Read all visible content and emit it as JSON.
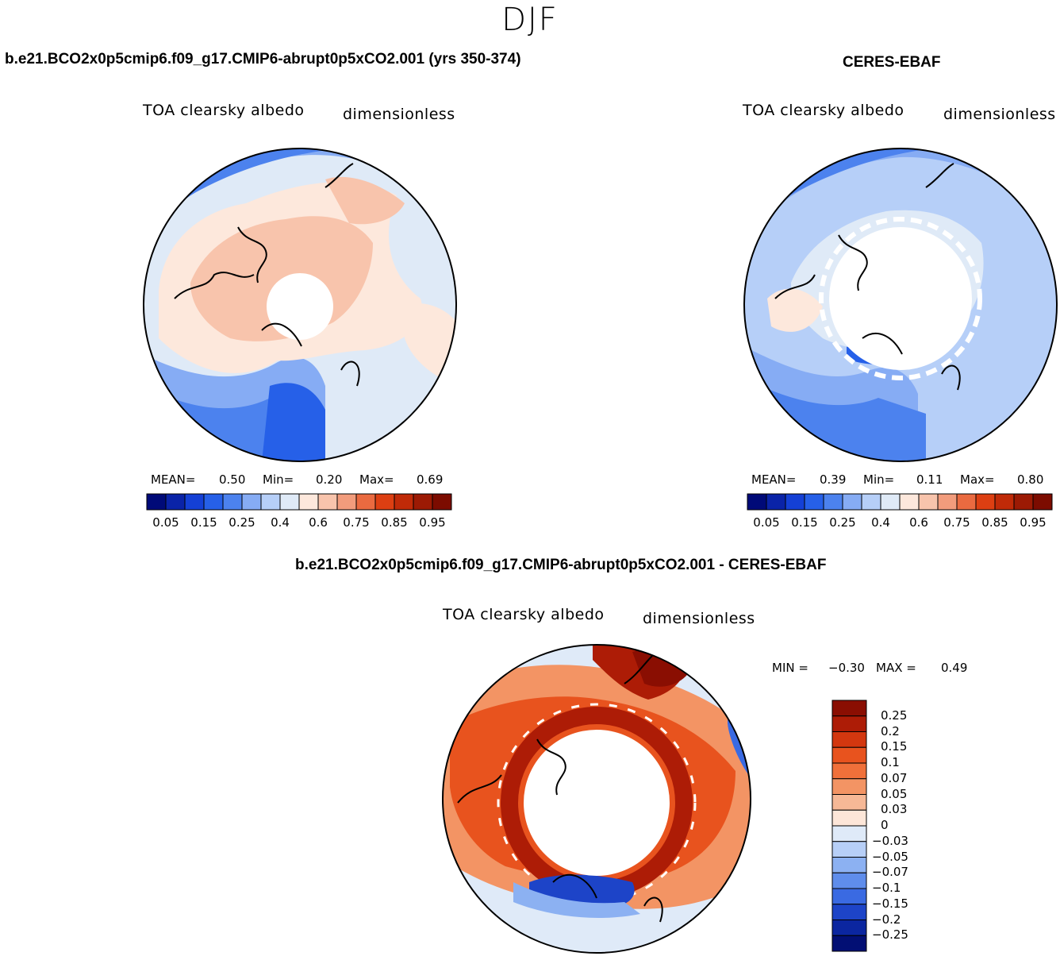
{
  "figure": {
    "season": "DJF",
    "panels": [
      {
        "title": "b.e21.BCO2x0p5cmip6.f09_g17.CMIP6-abrupt0p5xCO2.001 (yrs 350-374)",
        "variable": "TOA clearsky albedo",
        "units": "dimensionless",
        "mean_label": "MEAN=",
        "mean": "0.50",
        "min_label": "Min=",
        "min": "0.20",
        "max_label": "Max=",
        "max": "0.69"
      },
      {
        "title": "CERES-EBAF",
        "variable": "TOA clearsky albedo",
        "units": "dimensionless",
        "mean_label": "MEAN=",
        "mean": "0.39",
        "min_label": "Min=",
        "min": "0.11",
        "max_label": "Max=",
        "max": "0.80"
      },
      {
        "title": "b.e21.BCO2x0p5cmip6.f09_g17.CMIP6-abrupt0p5xCO2.001 - CERES-EBAF",
        "variable": "TOA clearsky albedo",
        "units": "dimensionless",
        "min_label": "MIN =",
        "min": "−0.30",
        "max_label": "MAX =",
        "max": "0.49"
      }
    ]
  },
  "chart_data": [
    {
      "type": "heatmap",
      "projection": "north polar stereographic",
      "title": "b.e21.BCO2x0p5cmip6.f09_g17.CMIP6-abrupt0p5xCO2.001 (yrs 350-374)",
      "field": "TOA clearsky albedo",
      "units": "dimensionless",
      "stats": {
        "mean": 0.5,
        "min": 0.2,
        "max": 0.69
      },
      "colorbar_ticks": [
        "0.05",
        "0.15",
        "0.25",
        "0.4",
        "0.6",
        "0.75",
        "0.85",
        "0.95"
      ],
      "colors": [
        "#000a78",
        "#0a23a8",
        "#1440d6",
        "#2660e8",
        "#4c82ee",
        "#86acf4",
        "#b6cff8",
        "#dfeaf7",
        "#fde8dc",
        "#f8c4ac",
        "#f29c7c",
        "#ea6a40",
        "#dd3f12",
        "#c02a08",
        "#9c1a04",
        "#7c0c00"
      ]
    },
    {
      "type": "heatmap",
      "projection": "north polar stereographic",
      "title": "CERES-EBAF",
      "field": "TOA clearsky albedo",
      "units": "dimensionless",
      "stats": {
        "mean": 0.39,
        "min": 0.11,
        "max": 0.8
      },
      "colorbar_ticks": [
        "0.05",
        "0.15",
        "0.25",
        "0.4",
        "0.6",
        "0.75",
        "0.85",
        "0.95"
      ],
      "colors": [
        "#000a78",
        "#0a23a8",
        "#1440d6",
        "#2660e8",
        "#4c82ee",
        "#86acf4",
        "#b6cff8",
        "#dfeaf7",
        "#fde8dc",
        "#f8c4ac",
        "#f29c7c",
        "#ea6a40",
        "#dd3f12",
        "#c02a08",
        "#9c1a04",
        "#7c0c00"
      ]
    },
    {
      "type": "heatmap",
      "projection": "north polar stereographic",
      "title": "b.e21.BCO2x0p5cmip6.f09_g17.CMIP6-abrupt0p5xCO2.001 - CERES-EBAF",
      "field": "TOA clearsky albedo (difference)",
      "units": "dimensionless",
      "stats": {
        "min": -0.3,
        "max": 0.49
      },
      "colorbar_levels": [
        "0.25",
        "0.2",
        "0.15",
        "0.1",
        "0.07",
        "0.05",
        "0.03",
        "0",
        "−0.03",
        "−0.05",
        "−0.07",
        "−0.1",
        "−0.15",
        "−0.2",
        "−0.25"
      ],
      "colors": [
        "#8a0e02",
        "#ad1c06",
        "#d3370f",
        "#e8531e",
        "#f0703a",
        "#f39464",
        "#f6b896",
        "#fde6d8",
        "#dfeaf8",
        "#b7cff7",
        "#8cb1f2",
        "#5f8deb",
        "#3a6ae2",
        "#1d44c8",
        "#0b26a0",
        "#020f74"
      ]
    }
  ]
}
